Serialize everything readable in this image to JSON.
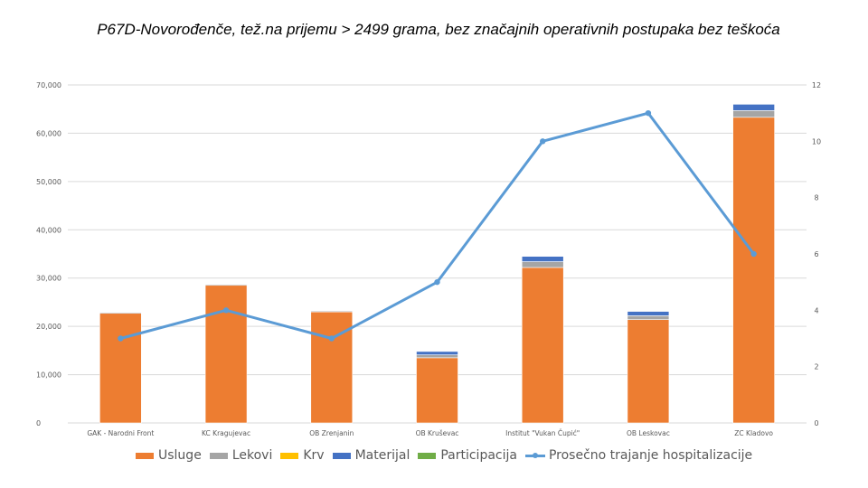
{
  "chart_data": {
    "type": "bar",
    "title": "P67D-Novorođenče, tež.na prijemu > 2499 grama, bez značajnih operativnih postupaka bez teškoća",
    "categories": [
      "GAK - Narodni Front",
      "KC Kragujevac",
      "OB Zrenjanin",
      "OB Kruševac",
      "Institut \"Vukan Čupić\"",
      "OB Leskovac",
      "ZC Kladovo"
    ],
    "series": [
      {
        "name": "Usluge",
        "color": "#ED7D31",
        "values": [
          22700,
          28500,
          23000,
          13500,
          32200,
          21400,
          63300
        ]
      },
      {
        "name": "Lekovi",
        "color": "#A5A5A5",
        "values": [
          200,
          200,
          200,
          600,
          1200,
          800,
          1400
        ]
      },
      {
        "name": "Krv",
        "color": "#FFC000",
        "values": [
          0,
          0,
          0,
          0,
          0,
          0,
          0
        ]
      },
      {
        "name": "Materijal",
        "color": "#4472C4",
        "values": [
          100,
          100,
          100,
          700,
          1100,
          900,
          1300
        ]
      },
      {
        "name": "Participacija",
        "color": "#70AD47",
        "values": [
          0,
          0,
          0,
          0,
          0,
          0,
          0
        ]
      }
    ],
    "line_series": {
      "name": "Prosečno trajanje hospitalizacije",
      "color": "#5B9BD5",
      "values": [
        3,
        4,
        3,
        5,
        10,
        11,
        6
      ]
    },
    "y_left": {
      "min": 0,
      "max": 70000,
      "step": 10000,
      "ticks": [
        "0",
        "10,000",
        "20,000",
        "30,000",
        "40,000",
        "50,000",
        "60,000",
        "70,000"
      ]
    },
    "y_right": {
      "min": 0,
      "max": 12,
      "step": 2,
      "ticks": [
        "0",
        "2",
        "4",
        "6",
        "8",
        "10",
        "12"
      ]
    },
    "grid": true,
    "legend_position": "bottom"
  }
}
